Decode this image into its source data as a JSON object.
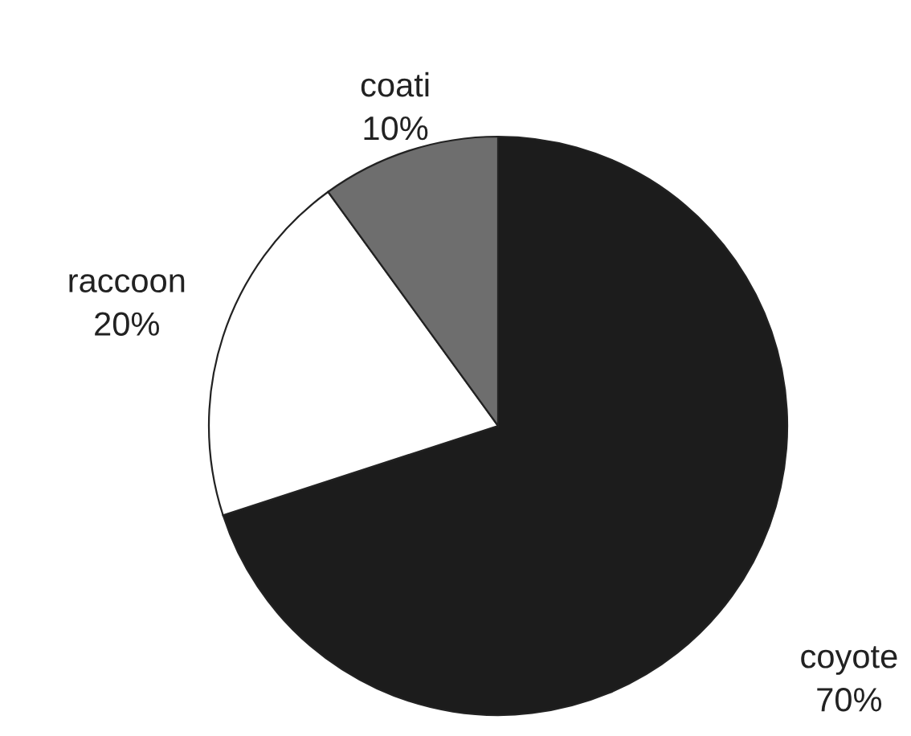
{
  "chart_data": {
    "type": "pie",
    "categories": [
      "coyote",
      "raccoon",
      "coati"
    ],
    "values": [
      70,
      20,
      10
    ],
    "colors": [
      "#1c1c1c",
      "#ffffff",
      "#6e6e6e"
    ],
    "value_labels": [
      "70%",
      "20%",
      "10%"
    ]
  }
}
